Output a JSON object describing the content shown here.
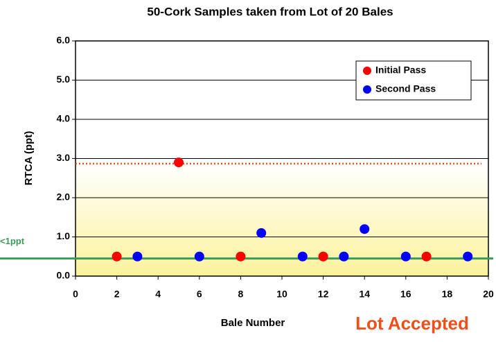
{
  "chart_data": {
    "type": "scatter",
    "title": "50-Cork Samples taken from Lot of 20 Bales",
    "x_label": "Bale Number",
    "y_label": "RTCA (ppt)",
    "annotation": "Lot Accepted",
    "xlim": [
      0,
      20
    ],
    "xticks": [
      0,
      2,
      4,
      6,
      8,
      10,
      12,
      14,
      16,
      18,
      20
    ],
    "ylim": [
      0,
      6
    ],
    "yticks": [
      {
        "value": 0,
        "label": "0.0"
      },
      {
        "value": 1,
        "label": "1.0"
      },
      {
        "value": 2,
        "label": "2.0"
      },
      {
        "value": 3,
        "label": "3.0"
      },
      {
        "value": 4,
        "label": "4.0"
      },
      {
        "value": 5,
        "label": "5.0"
      },
      {
        "value": 6,
        "label": "6.0"
      }
    ],
    "grid": true,
    "legend": "upper right",
    "reference_lines": [
      {
        "value": 2.87,
        "color": "#e8501e",
        "style": "dotted"
      },
      {
        "value": 0.45,
        "label": "<1ppt",
        "color": "#3a9a5a",
        "style": "solid"
      }
    ],
    "series": [
      {
        "name": "Initial Pass",
        "color": "#ff0000",
        "x": [
          2,
          5,
          8,
          12,
          17
        ],
        "values": [
          0.5,
          2.9,
          0.5,
          0.5,
          0.5
        ]
      },
      {
        "name": "Second Pass",
        "color": "#0000ff",
        "x": [
          3,
          6,
          9,
          11,
          13,
          14,
          16,
          19
        ],
        "values": [
          0.5,
          0.5,
          1.1,
          0.5,
          0.5,
          1.2,
          0.5,
          0.5
        ]
      }
    ]
  }
}
